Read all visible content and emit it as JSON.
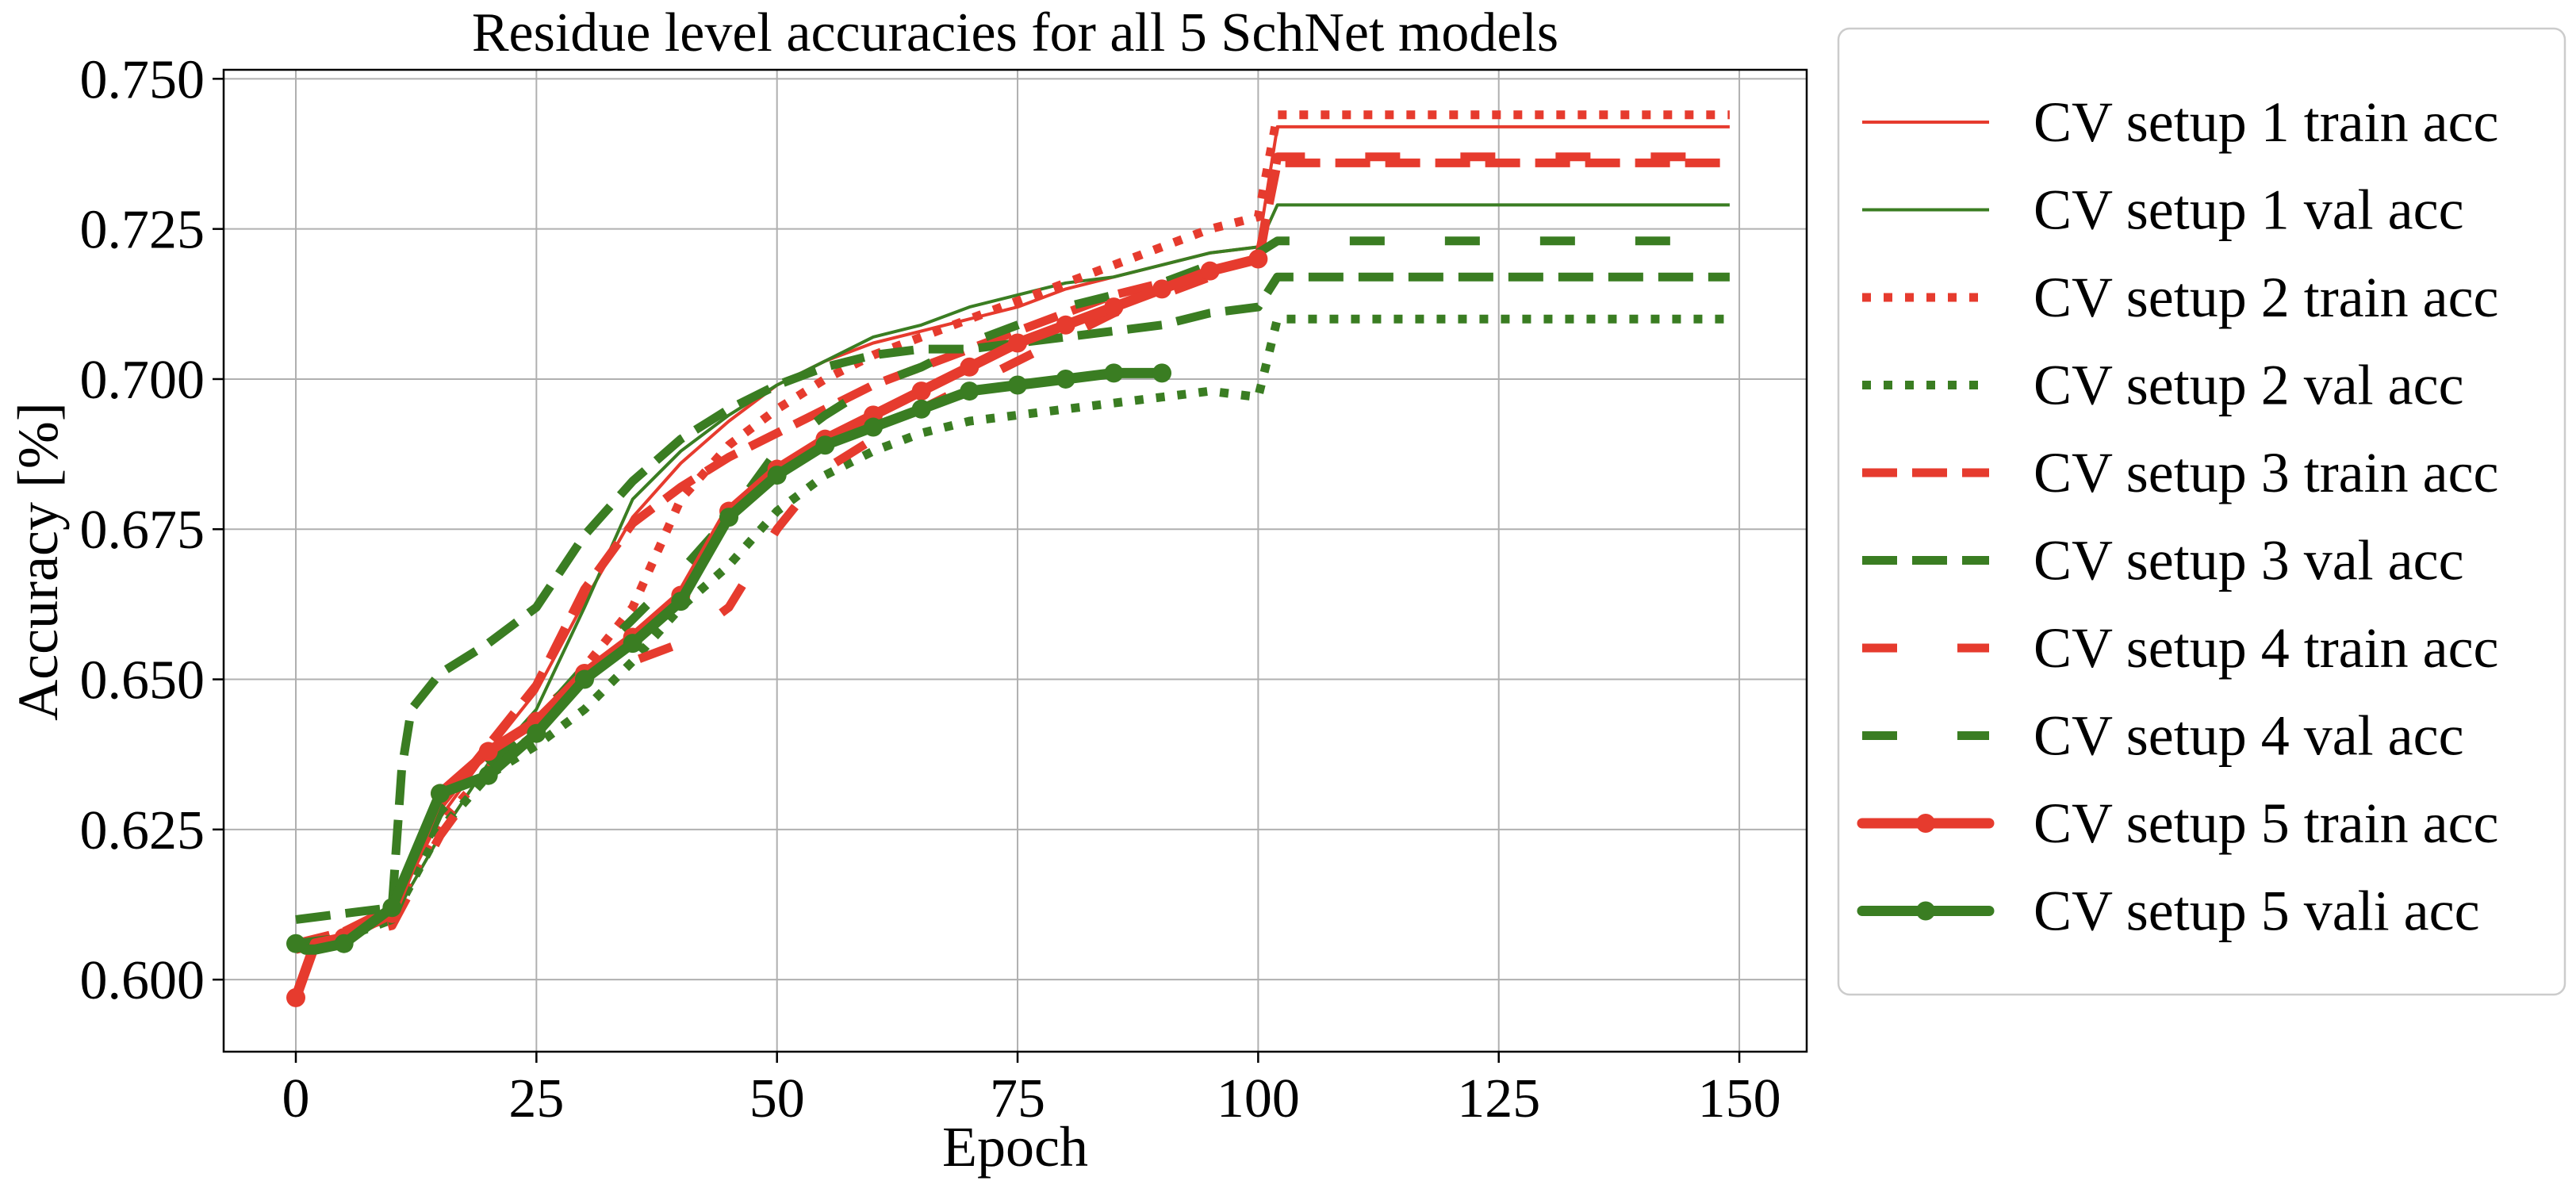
{
  "chart_data": {
    "type": "line",
    "title": "Residue level accuracies for all 5 SchNet models",
    "xlabel": "Epoch",
    "ylabel": "Accuracy [%]",
    "xlim": [
      -7.5,
      157
    ],
    "ylim": [
      0.588,
      0.7515
    ],
    "xticks": [
      0,
      25,
      50,
      75,
      100,
      125,
      150
    ],
    "yticks": [
      0.6,
      0.625,
      0.65,
      0.675,
      0.7,
      0.725,
      0.75
    ],
    "xtick_labels": [
      "0",
      "25",
      "50",
      "75",
      "100",
      "125",
      "150"
    ],
    "ytick_labels": [
      "0.600",
      "0.625",
      "0.650",
      "0.675",
      "0.700",
      "0.725",
      "0.750"
    ],
    "grid": true,
    "legend_position": "right, outside plot",
    "series": [
      {
        "name": "CV setup 1 train acc",
        "color": "#e63b2e",
        "style": "solid-thin",
        "x": [
          0,
          5,
          10,
          15,
          20,
          25,
          30,
          35,
          40,
          45,
          50,
          55,
          60,
          65,
          70,
          75,
          80,
          85,
          90,
          95,
          100,
          102,
          149
        ],
        "y": [
          0.606,
          0.607,
          0.611,
          0.627,
          0.638,
          0.648,
          0.663,
          0.677,
          0.686,
          0.693,
          0.699,
          0.703,
          0.706,
          0.708,
          0.71,
          0.712,
          0.715,
          0.717,
          0.719,
          0.721,
          0.722,
          0.742,
          0.742
        ]
      },
      {
        "name": "CV setup 1 val acc",
        "color": "#3a7d22",
        "style": "solid-thin",
        "x": [
          0,
          5,
          10,
          15,
          20,
          25,
          30,
          35,
          40,
          45,
          50,
          55,
          60,
          65,
          70,
          75,
          80,
          85,
          90,
          95,
          100,
          102,
          149
        ],
        "y": [
          0.605,
          0.607,
          0.61,
          0.624,
          0.636,
          0.645,
          0.662,
          0.68,
          0.688,
          0.694,
          0.699,
          0.703,
          0.707,
          0.709,
          0.712,
          0.714,
          0.716,
          0.717,
          0.719,
          0.721,
          0.722,
          0.729,
          0.729
        ]
      },
      {
        "name": "CV setup 2 train acc",
        "color": "#e63b2e",
        "style": "dotted",
        "x": [
          0,
          5,
          10,
          15,
          20,
          25,
          30,
          35,
          40,
          45,
          50,
          55,
          60,
          65,
          70,
          75,
          80,
          85,
          90,
          95,
          100,
          102,
          149
        ],
        "y": [
          0.606,
          0.607,
          0.611,
          0.626,
          0.635,
          0.641,
          0.652,
          0.662,
          0.68,
          0.689,
          0.695,
          0.7,
          0.704,
          0.707,
          0.71,
          0.713,
          0.716,
          0.719,
          0.722,
          0.725,
          0.727,
          0.744,
          0.744
        ]
      },
      {
        "name": "CV setup 2 val acc",
        "color": "#3a7d22",
        "style": "dotted",
        "x": [
          0,
          5,
          10,
          15,
          20,
          25,
          30,
          35,
          40,
          45,
          50,
          55,
          60,
          65,
          70,
          75,
          80,
          85,
          90,
          95,
          100,
          102,
          149
        ],
        "y": [
          0.606,
          0.607,
          0.61,
          0.625,
          0.634,
          0.639,
          0.645,
          0.653,
          0.662,
          0.669,
          0.678,
          0.684,
          0.688,
          0.691,
          0.693,
          0.694,
          0.695,
          0.696,
          0.697,
          0.698,
          0.697,
          0.71,
          0.71
        ]
      },
      {
        "name": "CV setup 3 train acc",
        "color": "#e63b2e",
        "style": "dashed",
        "x": [
          0,
          5,
          10,
          15,
          20,
          25,
          30,
          35,
          40,
          45,
          50,
          55,
          60,
          65,
          70,
          75,
          80,
          85,
          90,
          95,
          100,
          102,
          149
        ],
        "y": [
          0.606,
          0.608,
          0.612,
          0.629,
          0.639,
          0.649,
          0.665,
          0.676,
          0.682,
          0.687,
          0.691,
          0.695,
          0.699,
          0.702,
          0.705,
          0.708,
          0.711,
          0.714,
          0.716,
          0.718,
          0.72,
          0.736,
          0.736
        ]
      },
      {
        "name": "CV setup 3 val acc",
        "color": "#3a7d22",
        "style": "dashed",
        "x": [
          0,
          5,
          10,
          11,
          12,
          15,
          20,
          25,
          30,
          35,
          40,
          45,
          50,
          55,
          60,
          65,
          70,
          75,
          80,
          85,
          90,
          95,
          100,
          102,
          149
        ],
        "y": [
          0.61,
          0.611,
          0.612,
          0.635,
          0.645,
          0.651,
          0.656,
          0.662,
          0.674,
          0.683,
          0.69,
          0.695,
          0.699,
          0.702,
          0.704,
          0.705,
          0.705,
          0.706,
          0.707,
          0.708,
          0.709,
          0.711,
          0.712,
          0.717,
          0.717
        ]
      },
      {
        "name": "CV setup 4 train acc",
        "color": "#e63b2e",
        "style": "long-dashed",
        "x": [
          0,
          5,
          10,
          15,
          20,
          25,
          30,
          35,
          40,
          45,
          50,
          55,
          60,
          65,
          70,
          75,
          80,
          85,
          90,
          95,
          100,
          102,
          149
        ],
        "y": [
          0.605,
          0.607,
          0.609,
          0.624,
          0.635,
          0.644,
          0.651,
          0.653,
          0.656,
          0.662,
          0.675,
          0.685,
          0.69,
          0.695,
          0.699,
          0.703,
          0.707,
          0.711,
          0.714,
          0.717,
          0.719,
          0.737,
          0.737
        ]
      },
      {
        "name": "CV setup 4 val acc",
        "color": "#3a7d22",
        "style": "long-dashed",
        "x": [
          0,
          5,
          10,
          15,
          20,
          25,
          30,
          35,
          40,
          45,
          50,
          55,
          60,
          65,
          70,
          75,
          80,
          85,
          90,
          95,
          100,
          102,
          149
        ],
        "y": [
          0.606,
          0.607,
          0.61,
          0.628,
          0.636,
          0.643,
          0.652,
          0.66,
          0.668,
          0.677,
          0.688,
          0.694,
          0.699,
          0.702,
          0.706,
          0.709,
          0.712,
          0.714,
          0.716,
          0.719,
          0.721,
          0.723,
          0.723
        ]
      },
      {
        "name": "CV setup 5 train acc",
        "color": "#e63b2e",
        "style": "thick-marker",
        "x": [
          0,
          2,
          5,
          10,
          15,
          20,
          25,
          30,
          35,
          40,
          45,
          50,
          55,
          60,
          65,
          70,
          75,
          80,
          85,
          90,
          95,
          100
        ],
        "y": [
          0.597,
          0.606,
          0.607,
          0.611,
          0.631,
          0.638,
          0.643,
          0.651,
          0.657,
          0.664,
          0.678,
          0.685,
          0.69,
          0.694,
          0.698,
          0.702,
          0.706,
          0.709,
          0.712,
          0.715,
          0.718,
          0.72
        ]
      },
      {
        "name": "CV setup 5 vali acc",
        "color": "#3a7d22",
        "style": "thick-marker",
        "x": [
          0,
          1,
          2,
          5,
          10,
          15,
          20,
          25,
          30,
          35,
          40,
          45,
          50,
          55,
          60,
          65,
          70,
          75,
          80,
          85,
          90
        ],
        "y": [
          0.606,
          0.605,
          0.605,
          0.606,
          0.612,
          0.631,
          0.634,
          0.641,
          0.65,
          0.656,
          0.663,
          0.677,
          0.684,
          0.689,
          0.692,
          0.695,
          0.698,
          0.699,
          0.7,
          0.701,
          0.701
        ]
      }
    ]
  }
}
